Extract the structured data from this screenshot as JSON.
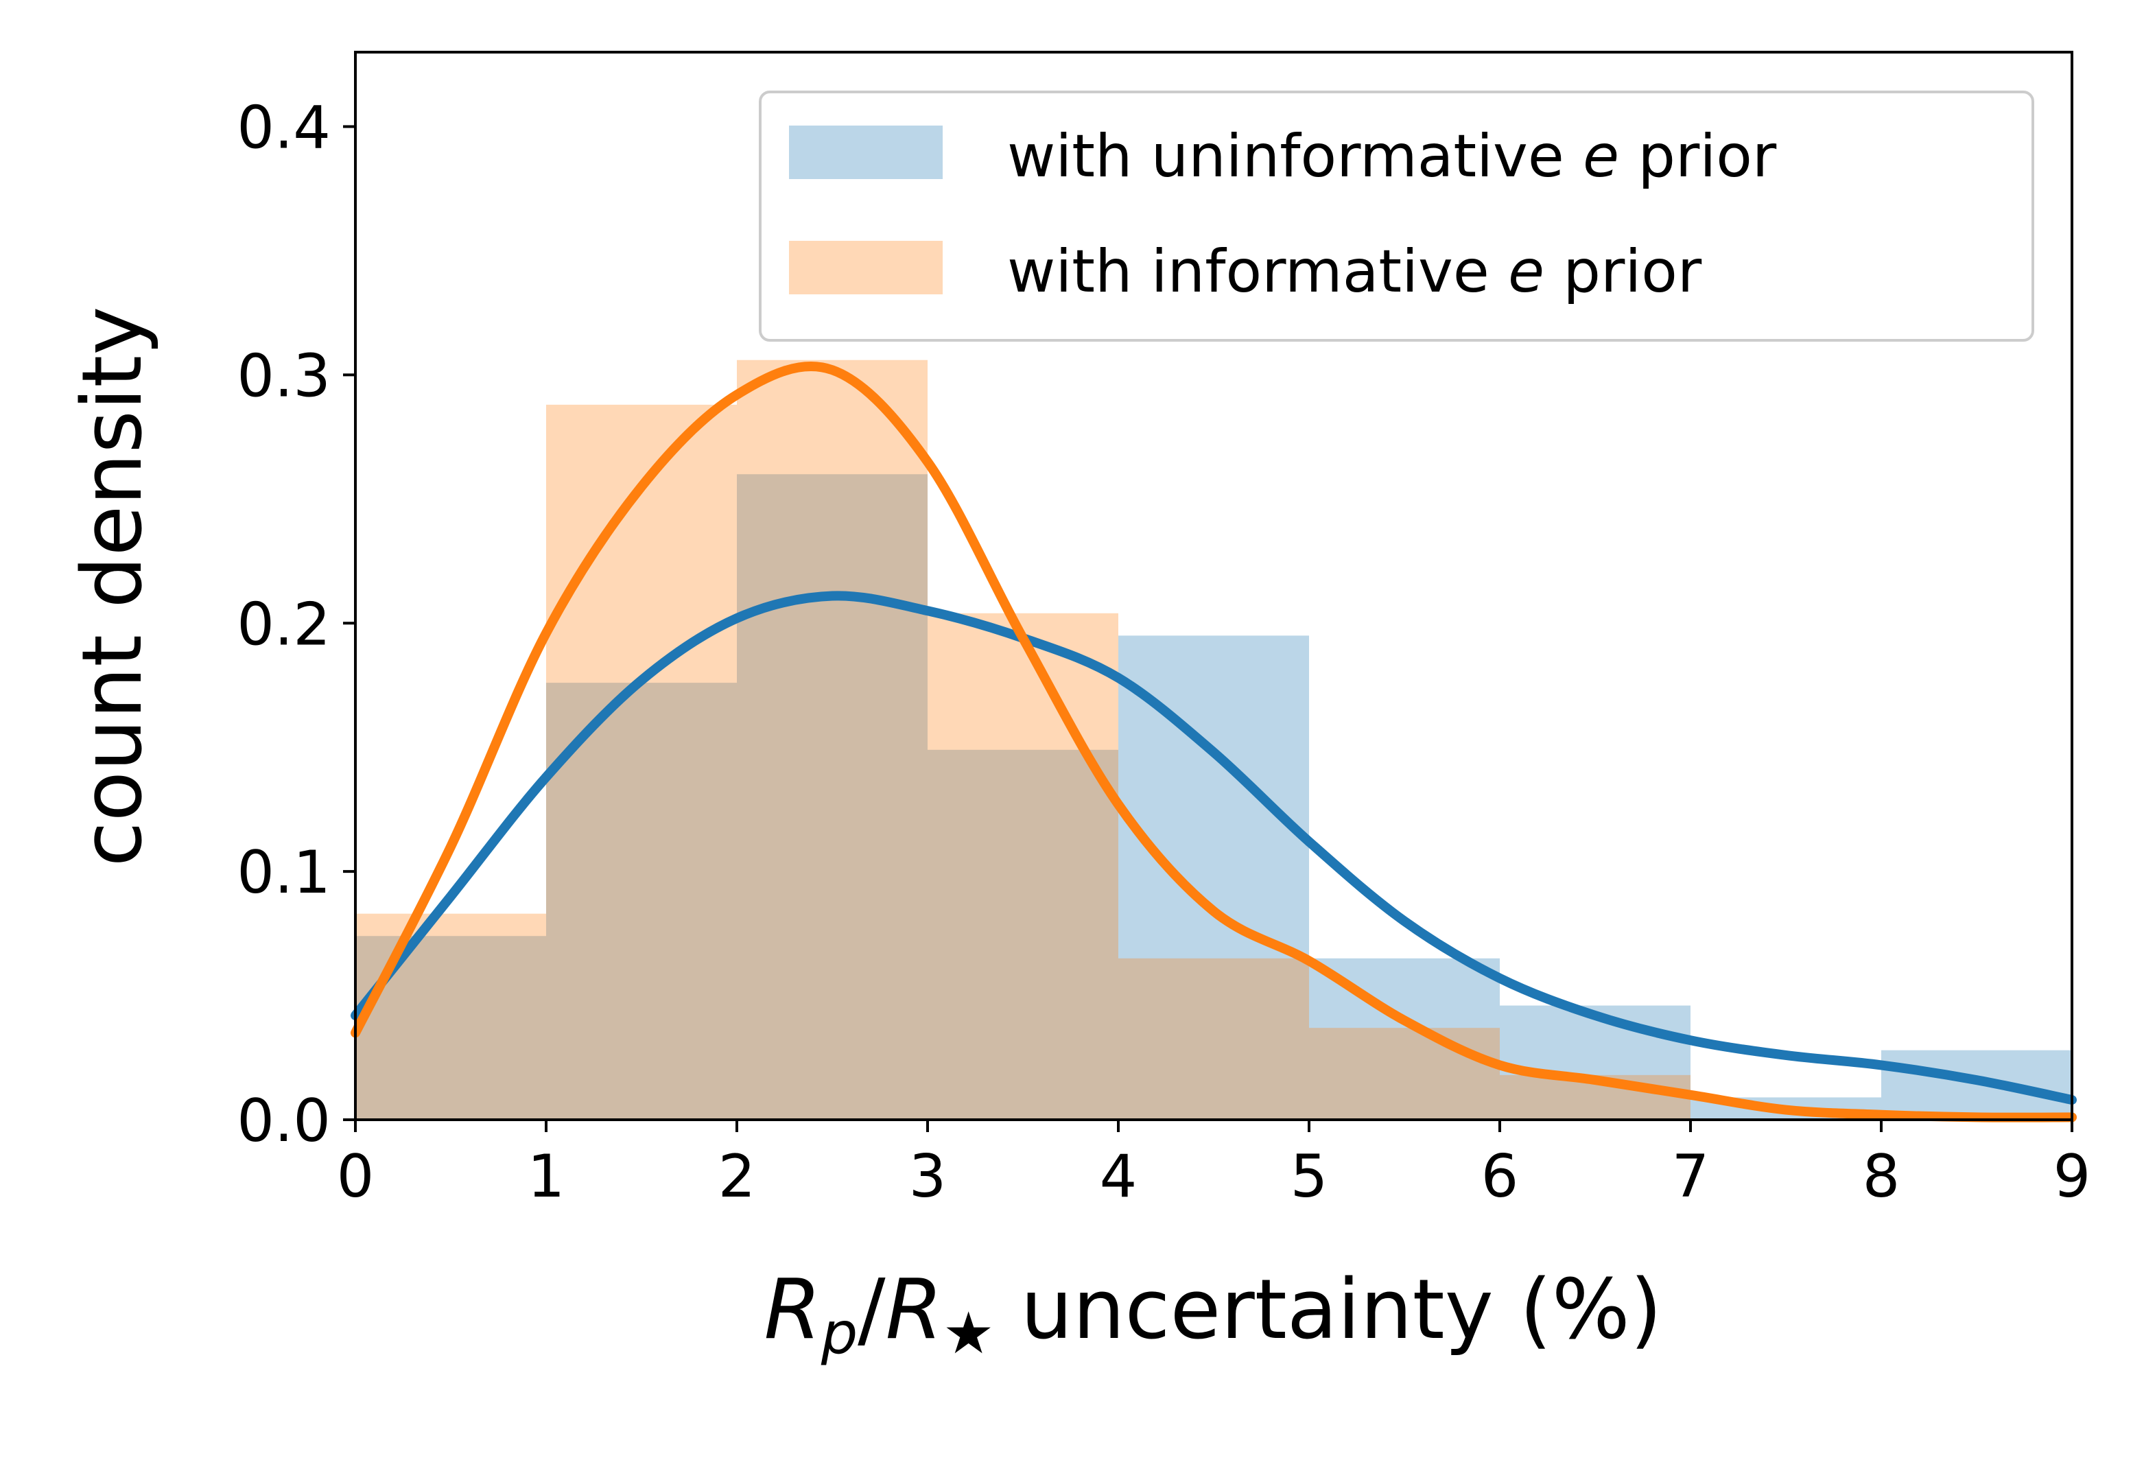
{
  "chart_data": {
    "type": "bar",
    "title": "",
    "xlabel": {
      "main": "R",
      "sub1": "p",
      "slash": "/",
      "main2": "R",
      "sub2": "★",
      "rest": " uncertainty (%)"
    },
    "ylabel": "count density",
    "xlim": [
      0,
      9
    ],
    "ylim": [
      0,
      0.43
    ],
    "xticks": [
      0,
      1,
      2,
      3,
      4,
      5,
      6,
      7,
      8,
      9
    ],
    "yticks": [
      0.0,
      0.1,
      0.2,
      0.3,
      0.4
    ],
    "ytick_labels": [
      "0.0",
      "0.1",
      "0.2",
      "0.3",
      "0.4"
    ],
    "grid": false,
    "legend_position": "top-right",
    "bin_edges": [
      0,
      1,
      2,
      3,
      4,
      5,
      6,
      7,
      8,
      9
    ],
    "series": [
      {
        "name": "with uninformative e prior",
        "name_parts": {
          "before": "with uninformative ",
          "italic": "e",
          "after": " prior"
        },
        "bar_color": "#1f77b4",
        "line_color": "#1f77b4",
        "hist": [
          0.074,
          0.176,
          0.26,
          0.149,
          0.195,
          0.065,
          0.046,
          0.009,
          0.028
        ],
        "kde_x": [
          0,
          0.5,
          1,
          1.5,
          2,
          2.5,
          3,
          3.5,
          4,
          4.5,
          5,
          5.5,
          6,
          6.5,
          7,
          7.5,
          8,
          8.5,
          9
        ],
        "kde_y": [
          0.042,
          0.09,
          0.138,
          0.177,
          0.202,
          0.211,
          0.205,
          0.194,
          0.178,
          0.148,
          0.112,
          0.08,
          0.057,
          0.042,
          0.032,
          0.026,
          0.022,
          0.016,
          0.008
        ]
      },
      {
        "name": "with informative e prior",
        "name_parts": {
          "before": "with informative ",
          "italic": "e",
          "after": " prior"
        },
        "bar_color": "#ff7f0e",
        "line_color": "#ff7f0e",
        "hist": [
          0.083,
          0.288,
          0.306,
          0.204,
          0.065,
          0.037,
          0.018,
          0.0,
          0.0
        ],
        "kde_x": [
          0,
          0.5,
          1,
          1.5,
          2,
          2.5,
          3,
          3.5,
          4,
          4.5,
          5,
          5.5,
          6,
          6.5,
          7,
          7.5,
          8,
          8.5,
          9
        ],
        "kde_y": [
          0.035,
          0.11,
          0.196,
          0.255,
          0.292,
          0.302,
          0.265,
          0.194,
          0.127,
          0.084,
          0.064,
          0.04,
          0.022,
          0.016,
          0.01,
          0.004,
          0.002,
          0.001,
          0.001
        ]
      }
    ]
  }
}
